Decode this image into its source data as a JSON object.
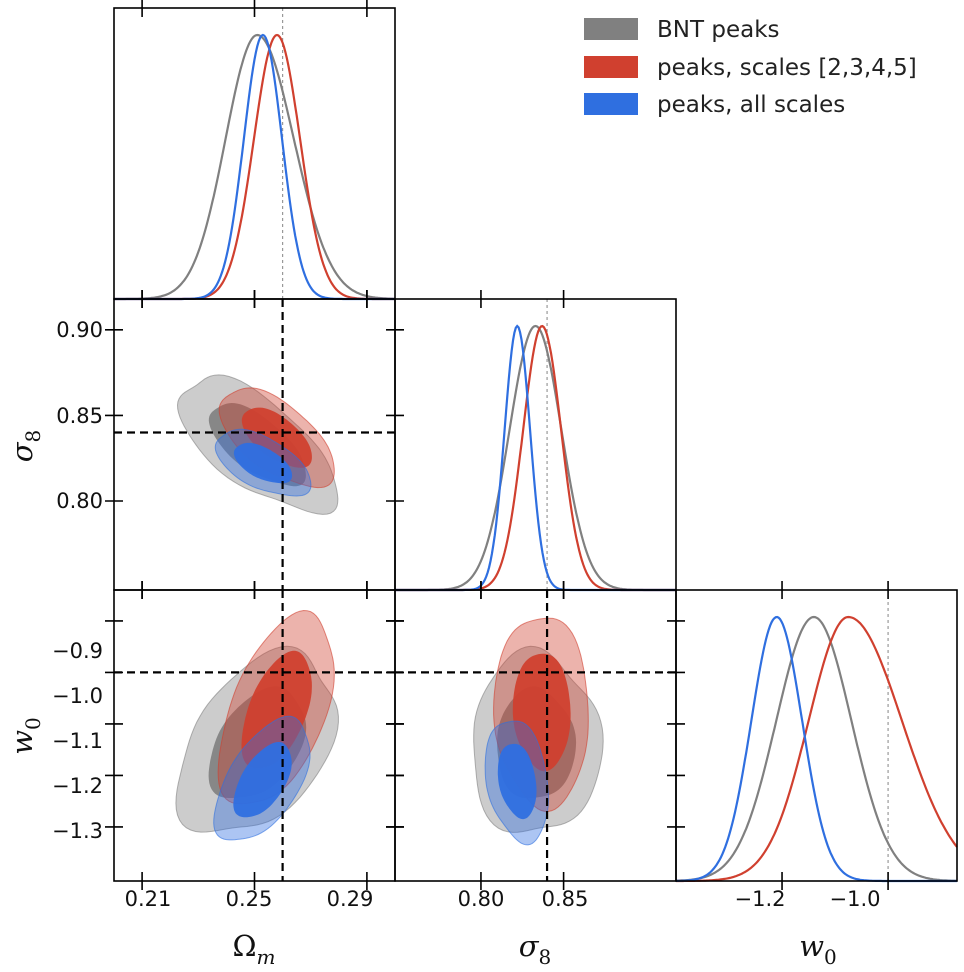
{
  "chart_data": {
    "type": "corner",
    "parameters": [
      {
        "name": "omega_m",
        "label": "Ω",
        "sub": "m",
        "ticks": [
          0.21,
          0.25,
          0.29
        ],
        "tick_labels": [
          "0.21",
          "0.25",
          "0.29"
        ],
        "range": [
          0.2,
          0.3
        ],
        "fiducial": 0.26
      },
      {
        "name": "sigma_8",
        "label": "σ",
        "sub": "8",
        "ticks": [
          0.8,
          0.85
        ],
        "tick_labels": [
          "0.80",
          "0.85"
        ],
        "y_ticks": [
          0.8,
          0.85,
          0.9
        ],
        "y_tick_labels": [
          "0.80",
          "0.85",
          "0.90"
        ],
        "range": [
          0.748,
          0.918
        ],
        "fiducial": 0.84
      },
      {
        "name": "w_0",
        "label": "w",
        "sub": "0",
        "ticks": [
          -1.2,
          -1.0
        ],
        "tick_labels": [
          "−1.2",
          "−1.0"
        ],
        "y_ticks": [
          -1.3,
          -1.2,
          -1.1,
          -1.0,
          -0.9
        ],
        "y_tick_labels": [
          "−1.3",
          "−1.2",
          "−1.1",
          "−1.0",
          "−0.9"
        ],
        "range": [
          -1.405,
          -0.84
        ],
        "x_range": [
          -1.4,
          -0.87
        ],
        "fiducial": -1.0
      }
    ],
    "series": [
      {
        "name": "BNT peaks",
        "color": "#808080",
        "light_alpha": 0.4,
        "dark_alpha": 0.9,
        "mean": [
          0.251,
          0.833,
          -1.14
        ],
        "sigma": [
          0.0113,
          0.0157,
          0.071
        ],
        "corr": {
          "om_s8": -0.65,
          "om_w0": 0.4,
          "s8_w0": 0.0
        }
      },
      {
        "name": "peaks, scales [2,3,4,5]",
        "color": "#d0402f",
        "light_alpha": 0.4,
        "dark_alpha": 0.95,
        "mean": [
          0.258,
          0.837,
          -1.075
        ],
        "sigma": [
          0.0082,
          0.0115,
          0.075
        ],
        "corr": {
          "om_s8": -0.6,
          "om_w0": 0.5,
          "s8_w0": -0.05
        }
      },
      {
        "name": "peaks, all scales",
        "color": "#2f6fe0",
        "light_alpha": 0.4,
        "dark_alpha": 0.95,
        "mean": [
          0.253,
          0.822,
          -1.21
        ],
        "sigma": [
          0.0068,
          0.0077,
          0.048
        ],
        "corr": {
          "om_s8": -0.55,
          "om_w0": 0.55,
          "s8_w0": -0.25
        }
      }
    ],
    "legend": [
      "BNT peaks",
      "peaks, scales [2,3,4,5]",
      "peaks, all scales"
    ],
    "fiducial_lines": "dashed"
  }
}
